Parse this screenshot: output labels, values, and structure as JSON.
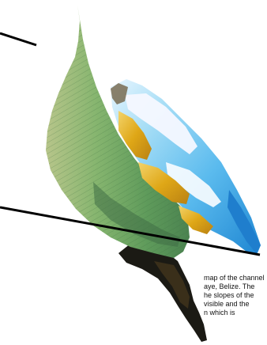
{
  "caption": {
    "lines": [
      "map of the channel",
      "aye, Belize. The",
      "he slopes of the",
      "visible and the",
      "n which is"
    ]
  },
  "colors": {
    "background": "#ffffff",
    "leader_lines": "#000000",
    "green_slope": "#7fb573",
    "dark_green": "#3f7a48",
    "yellow": "#e5b11f",
    "cyan": "#64c8f1",
    "blue": "#1c8bd6",
    "white_crest": "#f7f9ff"
  }
}
